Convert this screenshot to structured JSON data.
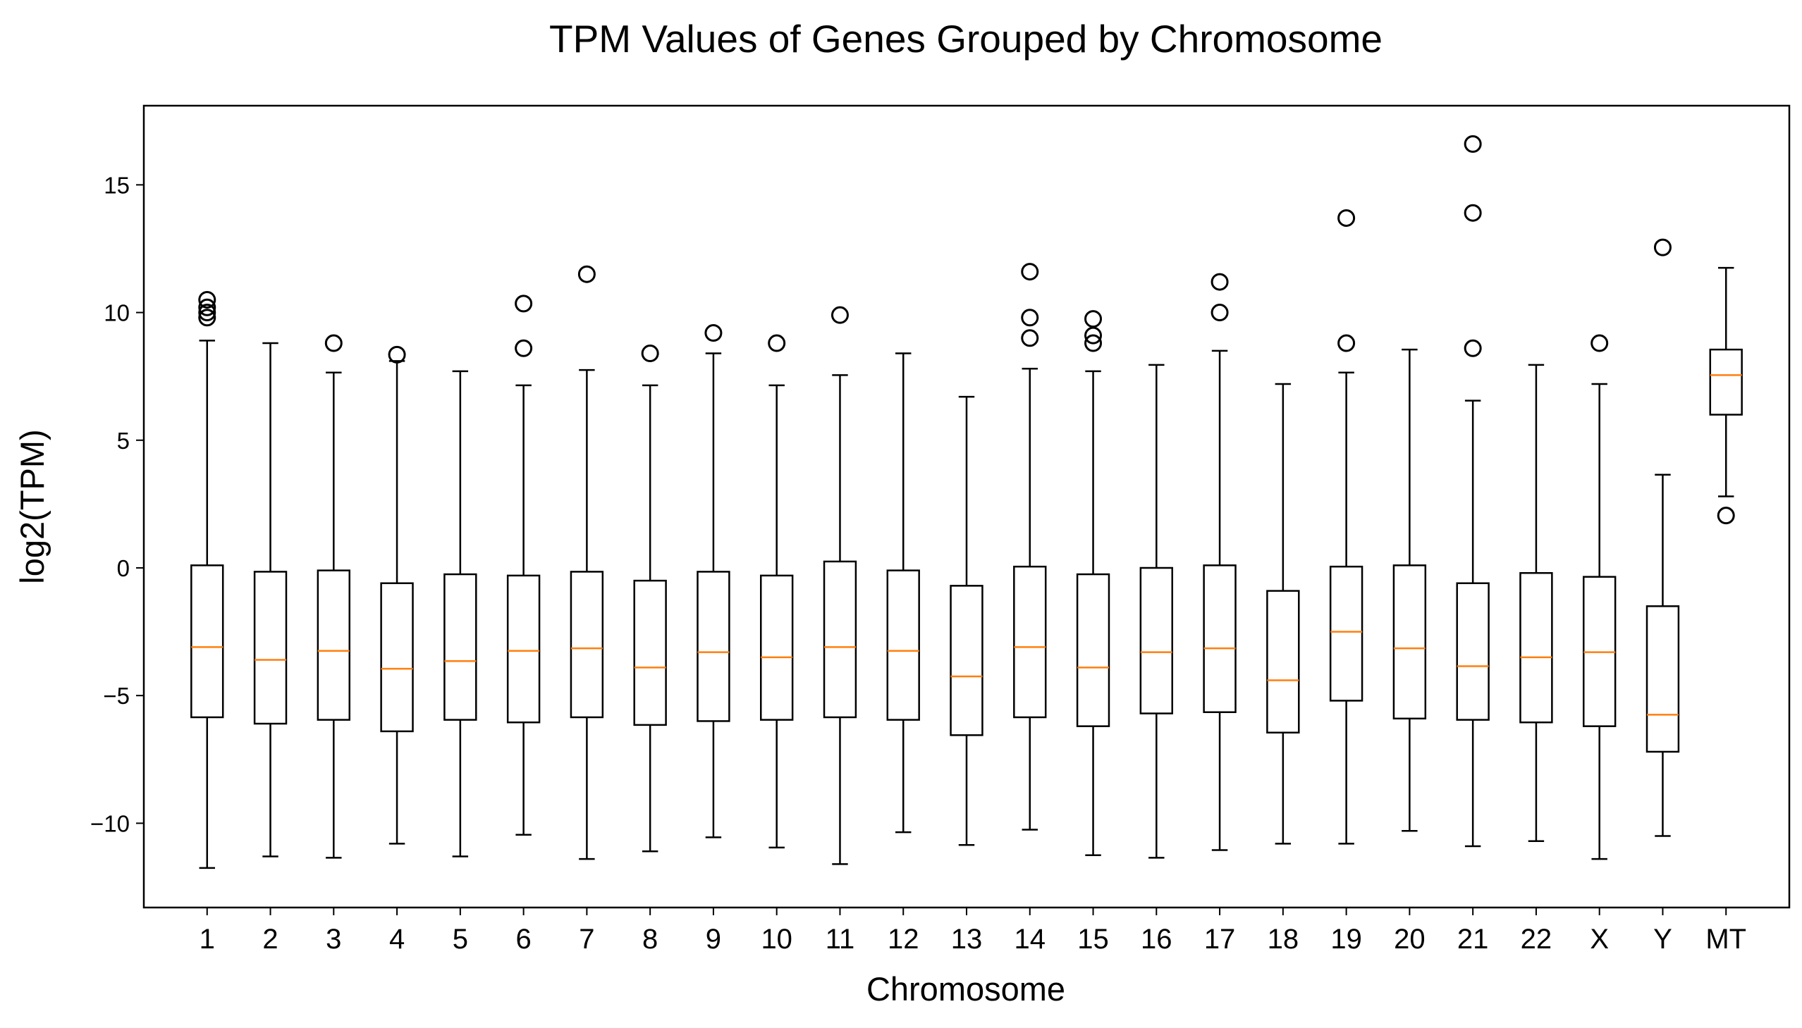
{
  "chart_data": {
    "type": "box",
    "title": "TPM Values of Genes Grouped by Chromosome",
    "xlabel": "Chromosome",
    "ylabel": "log2(TPM)",
    "ylim": [
      -13.3,
      18.1
    ],
    "yticks": [
      {
        "value": 15,
        "label": "15"
      },
      {
        "value": 10,
        "label": "10"
      },
      {
        "value": 5,
        "label": "5"
      },
      {
        "value": 0,
        "label": "0"
      },
      {
        "value": -5,
        "label": "−5"
      },
      {
        "value": -10,
        "label": "−10"
      }
    ],
    "grid": false,
    "colors": {
      "box": "#000000",
      "median": "#ff7f0e",
      "outlier": "#000000"
    },
    "categories": [
      "1",
      "2",
      "3",
      "4",
      "5",
      "6",
      "7",
      "8",
      "9",
      "10",
      "11",
      "12",
      "13",
      "14",
      "15",
      "16",
      "17",
      "18",
      "19",
      "20",
      "21",
      "22",
      "X",
      "Y",
      "MT"
    ],
    "boxes": [
      {
        "category": "1",
        "whisker_low": -11.75,
        "q1": -5.85,
        "median": -3.1,
        "q3": 0.1,
        "whisker_high": 8.9,
        "outliers": [
          9.8,
          10.0,
          10.2,
          10.5
        ]
      },
      {
        "category": "2",
        "whisker_low": -11.3,
        "q1": -6.1,
        "median": -3.6,
        "q3": -0.15,
        "whisker_high": 8.8,
        "outliers": []
      },
      {
        "category": "3",
        "whisker_low": -11.35,
        "q1": -5.95,
        "median": -3.25,
        "q3": -0.1,
        "whisker_high": 7.65,
        "outliers": [
          8.8
        ]
      },
      {
        "category": "4",
        "whisker_low": -10.8,
        "q1": -6.4,
        "median": -3.95,
        "q3": -0.6,
        "whisker_high": 8.1,
        "outliers": [
          8.35
        ]
      },
      {
        "category": "5",
        "whisker_low": -11.3,
        "q1": -5.95,
        "median": -3.65,
        "q3": -0.25,
        "whisker_high": 7.7,
        "outliers": []
      },
      {
        "category": "6",
        "whisker_low": -10.45,
        "q1": -6.05,
        "median": -3.25,
        "q3": -0.3,
        "whisker_high": 7.15,
        "outliers": [
          8.6,
          10.35
        ]
      },
      {
        "category": "7",
        "whisker_low": -11.4,
        "q1": -5.85,
        "median": -3.15,
        "q3": -0.15,
        "whisker_high": 7.75,
        "outliers": [
          11.5
        ]
      },
      {
        "category": "8",
        "whisker_low": -11.1,
        "q1": -6.15,
        "median": -3.9,
        "q3": -0.5,
        "whisker_high": 7.15,
        "outliers": [
          8.4
        ]
      },
      {
        "category": "9",
        "whisker_low": -10.55,
        "q1": -6.0,
        "median": -3.3,
        "q3": -0.15,
        "whisker_high": 8.4,
        "outliers": [
          9.2
        ]
      },
      {
        "category": "10",
        "whisker_low": -10.95,
        "q1": -5.95,
        "median": -3.5,
        "q3": -0.3,
        "whisker_high": 7.15,
        "outliers": [
          8.8
        ]
      },
      {
        "category": "11",
        "whisker_low": -11.6,
        "q1": -5.85,
        "median": -3.1,
        "q3": 0.25,
        "whisker_high": 7.55,
        "outliers": [
          9.9
        ]
      },
      {
        "category": "12",
        "whisker_low": -10.35,
        "q1": -5.95,
        "median": -3.25,
        "q3": -0.1,
        "whisker_high": 8.4,
        "outliers": []
      },
      {
        "category": "13",
        "whisker_low": -10.85,
        "q1": -6.55,
        "median": -4.25,
        "q3": -0.7,
        "whisker_high": 6.7,
        "outliers": []
      },
      {
        "category": "14",
        "whisker_low": -10.25,
        "q1": -5.85,
        "median": -3.1,
        "q3": 0.05,
        "whisker_high": 7.8,
        "outliers": [
          9.0,
          9.8,
          11.6
        ]
      },
      {
        "category": "15",
        "whisker_low": -11.25,
        "q1": -6.2,
        "median": -3.9,
        "q3": -0.25,
        "whisker_high": 7.7,
        "outliers": [
          8.8,
          9.1,
          9.75
        ]
      },
      {
        "category": "16",
        "whisker_low": -11.35,
        "q1": -5.7,
        "median": -3.3,
        "q3": 0.0,
        "whisker_high": 7.95,
        "outliers": []
      },
      {
        "category": "17",
        "whisker_low": -11.05,
        "q1": -5.65,
        "median": -3.15,
        "q3": 0.1,
        "whisker_high": 8.5,
        "outliers": [
          10.0,
          11.2
        ]
      },
      {
        "category": "18",
        "whisker_low": -10.8,
        "q1": -6.45,
        "median": -4.4,
        "q3": -0.9,
        "whisker_high": 7.2,
        "outliers": []
      },
      {
        "category": "19",
        "whisker_low": -10.8,
        "q1": -5.2,
        "median": -2.5,
        "q3": 0.05,
        "whisker_high": 7.65,
        "outliers": [
          8.8,
          13.7
        ]
      },
      {
        "category": "20",
        "whisker_low": -10.3,
        "q1": -5.9,
        "median": -3.15,
        "q3": 0.1,
        "whisker_high": 8.55,
        "outliers": []
      },
      {
        "category": "21",
        "whisker_low": -10.9,
        "q1": -5.95,
        "median": -3.85,
        "q3": -0.6,
        "whisker_high": 6.55,
        "outliers": [
          8.6,
          13.9,
          16.6
        ]
      },
      {
        "category": "22",
        "whisker_low": -10.7,
        "q1": -6.05,
        "median": -3.5,
        "q3": -0.2,
        "whisker_high": 7.95,
        "outliers": []
      },
      {
        "category": "X",
        "whisker_low": -11.4,
        "q1": -6.2,
        "median": -3.3,
        "q3": -0.35,
        "whisker_high": 7.2,
        "outliers": [
          8.8
        ]
      },
      {
        "category": "Y",
        "whisker_low": -10.5,
        "q1": -7.2,
        "median": -5.75,
        "q3": -1.5,
        "whisker_high": 3.65,
        "outliers": [
          12.55
        ]
      },
      {
        "category": "MT",
        "whisker_low": 2.8,
        "q1": 6.0,
        "median": 7.55,
        "q3": 8.55,
        "whisker_high": 11.75,
        "outliers": [
          2.05
        ]
      }
    ]
  }
}
